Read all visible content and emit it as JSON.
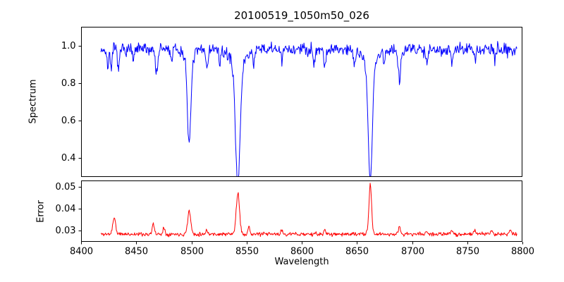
{
  "title": "20100519_1050m50_026",
  "xlabel": "Wavelength",
  "ylabels": {
    "top": "Spectrum",
    "bottom": "Error"
  },
  "chart_data": [
    {
      "type": "line",
      "name": "spectrum",
      "color": "#0000ff",
      "ylabel": "Spectrum",
      "x_start": 8418,
      "x_end": 8795,
      "x_step": 0.5,
      "xlim": [
        8400,
        8800
      ],
      "ylim": [
        0.3,
        1.1
      ],
      "yticks": [
        0.4,
        0.6,
        0.8,
        1.0
      ],
      "ytick_labels": [
        "0.4",
        "0.6",
        "0.8",
        "1.0"
      ],
      "show_xticks": false,
      "continuum": 0.98,
      "noise_amplitude": 0.05,
      "seed": 7,
      "absorption_lines": [
        [
          8498.0,
          0.47,
          1.5
        ],
        [
          8498.0,
          0.05,
          5.0
        ],
        [
          8542.1,
          0.64,
          2.2
        ],
        [
          8542.1,
          0.06,
          8.0
        ],
        [
          8662.1,
          0.64,
          1.9
        ],
        [
          8662.1,
          0.06,
          7.0
        ],
        [
          8424.0,
          0.09,
          0.9
        ],
        [
          8427.5,
          0.1,
          0.8
        ],
        [
          8434.0,
          0.11,
          0.9
        ],
        [
          8447.5,
          0.07,
          0.8
        ],
        [
          8468.5,
          0.13,
          1.0
        ],
        [
          8482.0,
          0.06,
          0.8
        ],
        [
          8514.1,
          0.1,
          0.9
        ],
        [
          8526.0,
          0.07,
          0.8
        ],
        [
          8556.8,
          0.06,
          0.8
        ],
        [
          8582.0,
          0.07,
          0.8
        ],
        [
          8611.0,
          0.07,
          0.8
        ],
        [
          8621.0,
          0.09,
          0.9
        ],
        [
          8648.0,
          0.06,
          0.8
        ],
        [
          8674.8,
          0.07,
          0.8
        ],
        [
          8688.6,
          0.16,
          1.1
        ],
        [
          8713.2,
          0.07,
          0.8
        ],
        [
          8736.0,
          0.08,
          0.8
        ],
        [
          8757.2,
          0.07,
          0.8
        ],
        [
          8775.0,
          0.07,
          0.8
        ]
      ],
      "peaks": []
    },
    {
      "type": "line",
      "name": "error",
      "color": "#ff0000",
      "ylabel": "Error",
      "x_start": 8418,
      "x_end": 8795,
      "x_step": 0.5,
      "xlim": [
        8400,
        8800
      ],
      "ylim": [
        0.025,
        0.053
      ],
      "yticks": [
        0.03,
        0.04,
        0.05
      ],
      "ytick_labels": [
        "0.03",
        "0.04",
        "0.05"
      ],
      "xticks": [
        8400,
        8450,
        8500,
        8550,
        8600,
        8650,
        8700,
        8750,
        8800
      ],
      "xtick_labels": [
        "8400",
        "8450",
        "8500",
        "8550",
        "8600",
        "8650",
        "8700",
        "8750",
        "8800"
      ],
      "show_xticks": true,
      "baseline": 0.0285,
      "noise_amplitude": 0.0013,
      "seed": 11,
      "absorption_lines": [],
      "peaks": [
        [
          8430.0,
          0.0075,
          1.3
        ],
        [
          8465.5,
          0.0045,
          1.0
        ],
        [
          8475.0,
          0.003,
          0.9
        ],
        [
          8498.0,
          0.0105,
          1.4
        ],
        [
          8514.0,
          0.002,
          0.9
        ],
        [
          8542.1,
          0.0185,
          1.5
        ],
        [
          8552.0,
          0.003,
          1.0
        ],
        [
          8582.0,
          0.0018,
          0.8
        ],
        [
          8621.0,
          0.0018,
          0.8
        ],
        [
          8662.1,
          0.0225,
          1.2
        ],
        [
          8688.6,
          0.0032,
          0.9
        ],
        [
          8713.0,
          0.0016,
          0.8
        ],
        [
          8736.0,
          0.0018,
          0.8
        ],
        [
          8757.0,
          0.0022,
          0.8
        ],
        [
          8772.0,
          0.002,
          0.9
        ],
        [
          8789.0,
          0.0025,
          0.9
        ]
      ]
    }
  ]
}
